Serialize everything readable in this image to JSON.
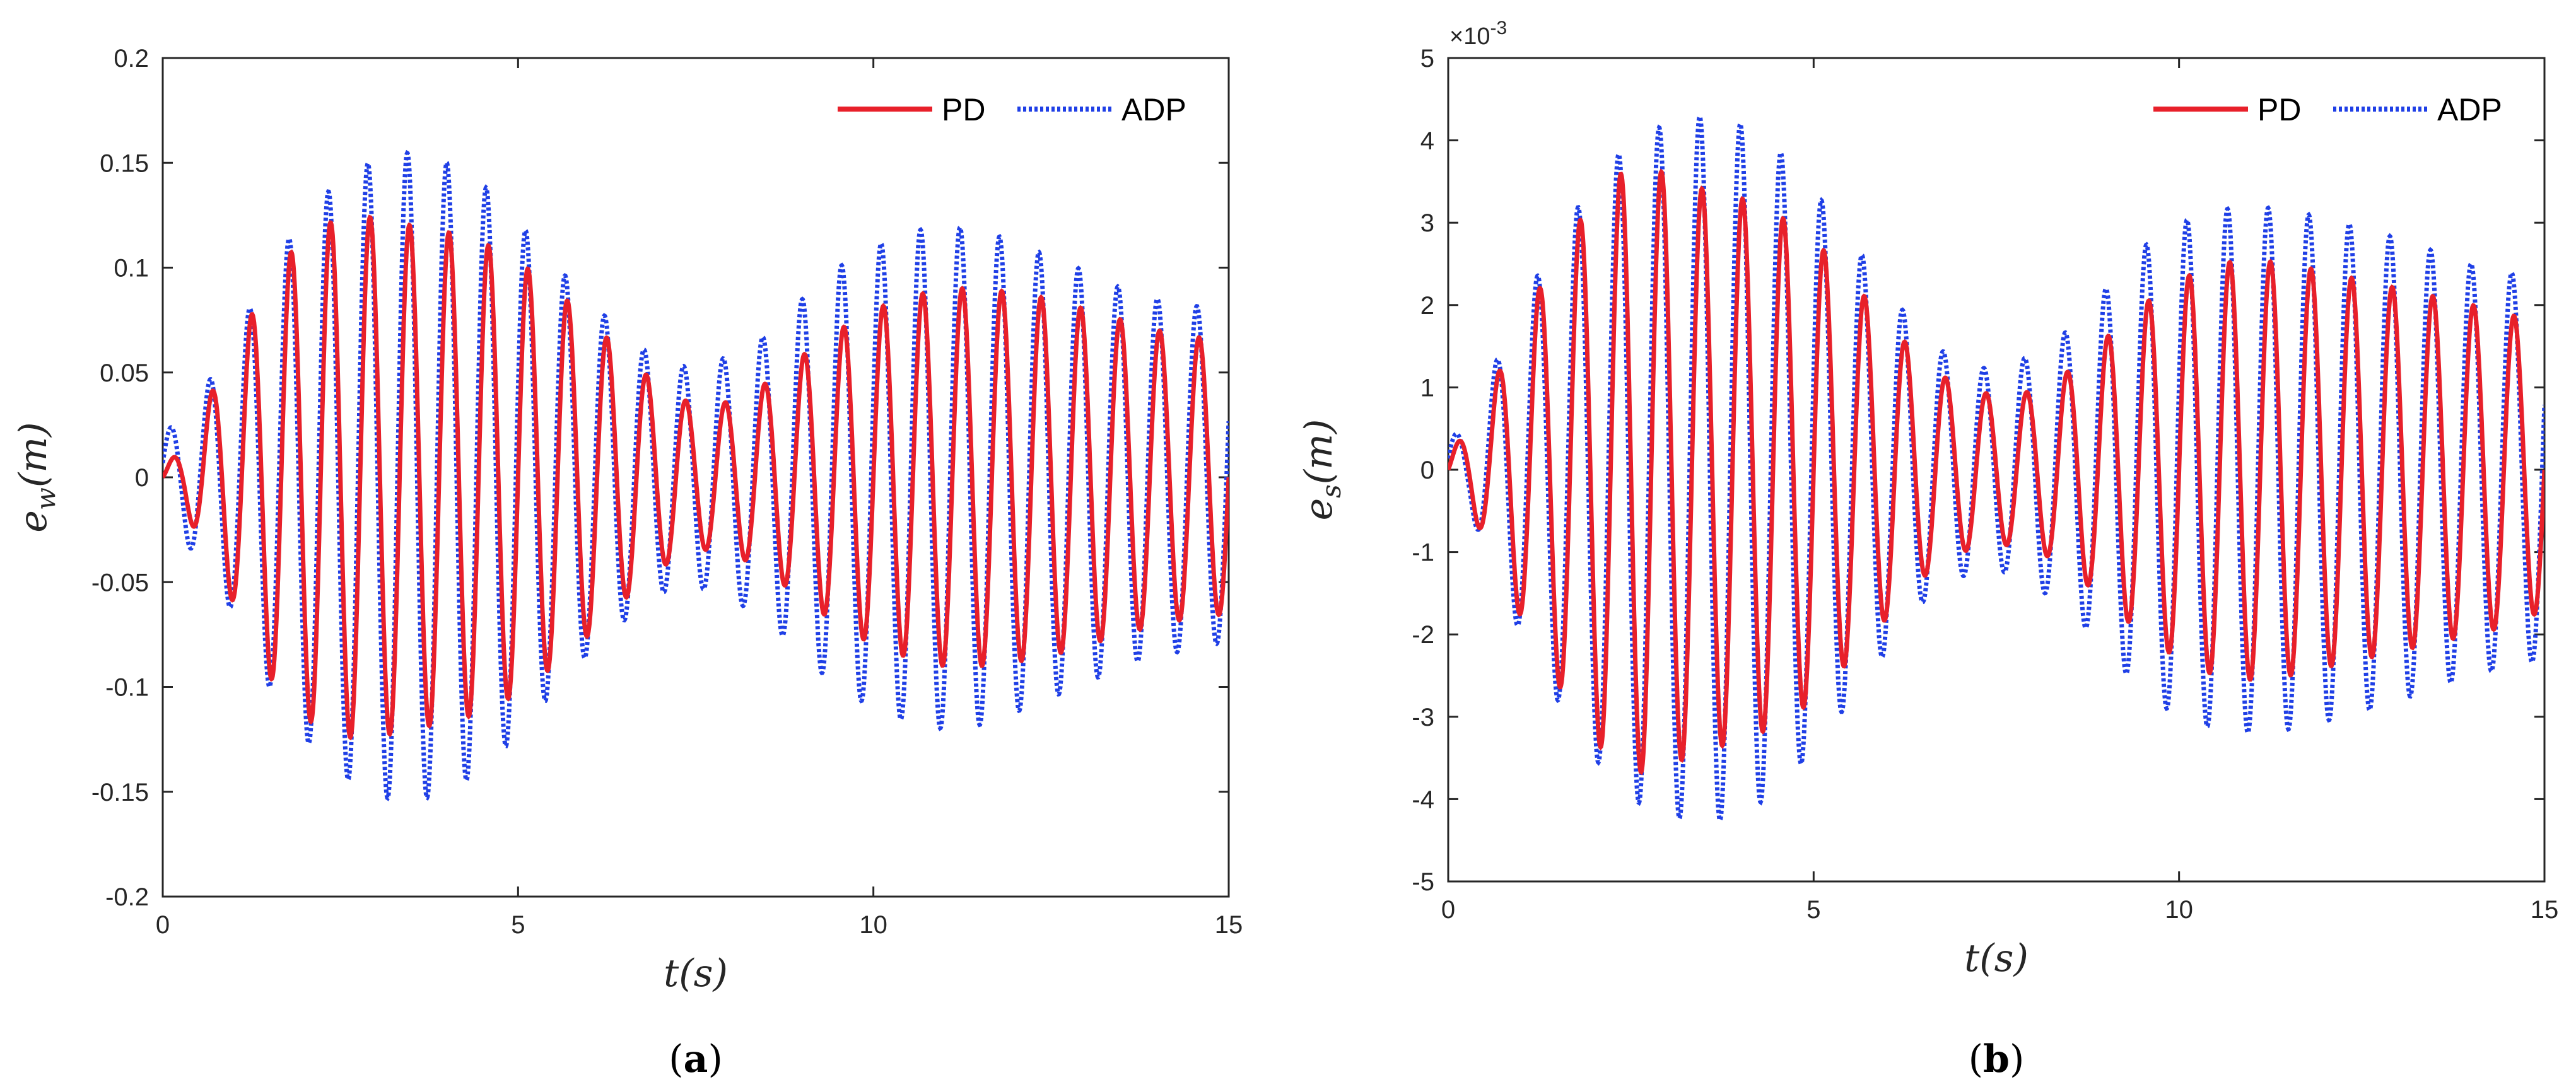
{
  "colors": {
    "pd": "#e8202a",
    "adp": "#1f3fe6",
    "axis": "#262626"
  },
  "chart_data": [
    {
      "type": "line",
      "panel_label": "(a)",
      "xlabel": "t(s)",
      "ylabel": {
        "base": "e",
        "sub": "w",
        "tail": "(m)"
      },
      "xlim": [
        0,
        15
      ],
      "ylim": [
        -0.2,
        0.2
      ],
      "xticks": [
        0,
        5,
        10,
        15
      ],
      "xtick_labels": [
        "0",
        "5",
        "10",
        "15"
      ],
      "yticks": [
        -0.2,
        -0.15,
        -0.1,
        -0.05,
        0,
        0.05,
        0.1,
        0.15,
        0.2
      ],
      "ytick_labels": [
        "-0.2",
        "-0.15",
        "-0.1",
        "-0.05",
        "0",
        "0.05",
        "0.1",
        "0.15",
        "0.2"
      ],
      "exponent_label": "",
      "legend": {
        "position": "top-right",
        "entries": [
          "PD",
          "ADP"
        ]
      },
      "signal": {
        "frequency_hz": 1.8,
        "oscillations_description": "sinusoidal error signal"
      },
      "series": [
        {
          "name": "PD",
          "style": "solid",
          "envelope": {
            "t": [
              0,
              0.3,
              0.6,
              1.0,
              1.5,
              2.0,
              2.5,
              3.0,
              3.5,
              4.0,
              4.5,
              5.0,
              5.5,
              6.0,
              6.5,
              7.0,
              7.5,
              8.0,
              8.5,
              9.0,
              9.5,
              10.0,
              10.5,
              11.0,
              11.5,
              12.0,
              12.5,
              13.0,
              13.5,
              14.0,
              14.5,
              15.0
            ],
            "amp": [
              0.004,
              0.015,
              0.035,
              0.06,
              0.095,
              0.115,
              0.124,
              0.124,
              0.12,
              0.117,
              0.112,
              0.103,
              0.09,
              0.075,
              0.058,
              0.043,
              0.034,
              0.036,
              0.045,
              0.058,
              0.07,
              0.08,
              0.086,
              0.09,
              0.09,
              0.088,
              0.085,
              0.08,
              0.075,
              0.07,
              0.067,
              0.065
            ]
          }
        },
        {
          "name": "ADP",
          "style": "dotted",
          "envelope": {
            "t": [
              0,
              0.3,
              0.6,
              1.0,
              1.5,
              2.0,
              2.5,
              3.0,
              3.5,
              4.0,
              4.5,
              5.0,
              5.5,
              6.0,
              6.5,
              7.0,
              7.5,
              8.0,
              8.5,
              9.0,
              9.5,
              10.0,
              10.5,
              11.0,
              11.5,
              12.0,
              12.5,
              13.0,
              13.5,
              14.0,
              14.5,
              15.0
            ],
            "amp": [
              0.02,
              0.03,
              0.043,
              0.065,
              0.1,
              0.125,
              0.142,
              0.152,
              0.155,
              0.15,
              0.14,
              0.122,
              0.102,
              0.084,
              0.068,
              0.055,
              0.052,
              0.058,
              0.068,
              0.085,
              0.1,
              0.11,
              0.117,
              0.12,
              0.118,
              0.112,
              0.105,
              0.098,
              0.09,
              0.085,
              0.082,
              0.078
            ]
          }
        }
      ]
    },
    {
      "type": "line",
      "panel_label": "(b)",
      "xlabel": "t(s)",
      "ylabel": {
        "base": "e",
        "sub": "s",
        "tail": "(m)"
      },
      "xlim": [
        0,
        15
      ],
      "ylim": [
        -5,
        5
      ],
      "xticks": [
        0,
        5,
        10,
        15
      ],
      "xtick_labels": [
        "0",
        "5",
        "10",
        "15"
      ],
      "yticks": [
        -5,
        -4,
        -3,
        -2,
        -1,
        0,
        1,
        2,
        3,
        4,
        5
      ],
      "ytick_labels": [
        "-5",
        "-4",
        "-3",
        "-2",
        "-1",
        "0",
        "1",
        "2",
        "3",
        "4",
        "5"
      ],
      "exponent_label": "×10-3",
      "exponent_parts": {
        "base": "×10",
        "power": "-3"
      },
      "legend": {
        "position": "top-right",
        "entries": [
          "PD",
          "ADP"
        ]
      },
      "signal": {
        "frequency_hz": 1.8,
        "oscillations_description": "sinusoidal error signal"
      },
      "series": [
        {
          "name": "PD",
          "style": "solid",
          "envelope": {
            "t": [
              0,
              0.3,
              0.6,
              1.0,
              1.5,
              2.0,
              2.5,
              3.0,
              3.5,
              4.0,
              4.5,
              5.0,
              5.5,
              6.0,
              6.5,
              7.0,
              7.5,
              8.0,
              8.5,
              9.0,
              9.5,
              10.0,
              10.5,
              11.0,
              11.5,
              12.0,
              12.5,
              13.0,
              13.5,
              14.0,
              14.5,
              15.0
            ],
            "amp": [
              0.2,
              0.5,
              1.0,
              1.8,
              2.6,
              3.3,
              3.7,
              3.6,
              3.4,
              3.3,
              3.1,
              2.8,
              2.3,
              1.8,
              1.3,
              1.0,
              0.9,
              0.95,
              1.2,
              1.6,
              2.0,
              2.3,
              2.5,
              2.55,
              2.5,
              2.4,
              2.3,
              2.2,
              2.1,
              2.0,
              1.9,
              1.7
            ]
          }
        },
        {
          "name": "ADP",
          "style": "dotted",
          "envelope": {
            "t": [
              0,
              0.3,
              0.6,
              1.0,
              1.5,
              2.0,
              2.5,
              3.0,
              3.5,
              4.0,
              4.5,
              5.0,
              5.5,
              6.0,
              6.5,
              7.0,
              7.5,
              8.0,
              8.5,
              9.0,
              9.5,
              10.0,
              10.5,
              11.0,
              11.5,
              12.0,
              12.5,
              13.0,
              13.5,
              14.0,
              14.5,
              15.0
            ],
            "amp": [
              0.4,
              0.5,
              1.2,
              2.0,
              2.8,
              3.5,
              4.0,
              4.2,
              4.3,
              4.2,
              3.9,
              3.4,
              2.8,
              2.2,
              1.6,
              1.3,
              1.2,
              1.4,
              1.7,
              2.2,
              2.7,
              3.0,
              3.15,
              3.2,
              3.15,
              3.05,
              2.95,
              2.8,
              2.65,
              2.5,
              2.4,
              2.3
            ]
          }
        }
      ]
    }
  ]
}
